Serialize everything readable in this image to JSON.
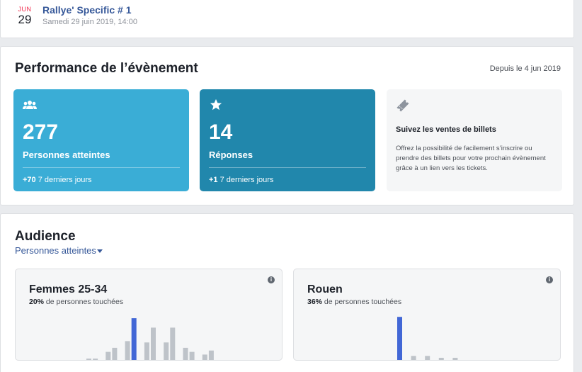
{
  "event": {
    "month": "JUN",
    "day": "29",
    "title": "Rallye' Specific # 1",
    "datetime": "Samedi 29 juin 2019, 14:00"
  },
  "performance": {
    "title": "Performance de l’évènement",
    "since": "Depuis le 4 jun 2019",
    "reach": {
      "icon": "people-icon",
      "value": "277",
      "label": "Personnes atteintes",
      "delta": "+70",
      "delta_period": "7 derniers jours"
    },
    "replies": {
      "icon": "star-icon",
      "value": "14",
      "label": "Réponses",
      "delta": "+1",
      "delta_period": "7 derniers jours"
    },
    "tickets": {
      "icon": "ticket-icon",
      "title": "Suivez les ventes de billets",
      "description": "Offrez la possibilité de facilement s’inscrire ou prendre des billets pour votre prochain évènement grâce à un lien vers les tickets."
    }
  },
  "audience": {
    "title": "Audience",
    "metric_select": "Personnes atteintes",
    "panels": [
      {
        "title": "Femmes 25-34",
        "percent": "20%",
        "percent_suffix": " de personnes touchées",
        "bars": [
          0.05,
          0.05,
          0,
          0.3,
          0.45,
          0,
          0.7,
          1.55,
          0,
          0.65,
          1.2,
          0,
          0.65,
          1.2,
          0,
          0.45,
          0.3,
          0,
          0.2,
          0.35
        ],
        "highlight_index": 7
      },
      {
        "title": "Rouen",
        "percent": "36%",
        "percent_suffix": " de personnes touchées",
        "bars": [
          1.6,
          0,
          0.15,
          0,
          0.15,
          0,
          0.08,
          0,
          0.08
        ],
        "highlight_index": 0
      }
    ],
    "colors": {
      "bar": "#bec3c9",
      "highlight": "#4267d6"
    }
  }
}
